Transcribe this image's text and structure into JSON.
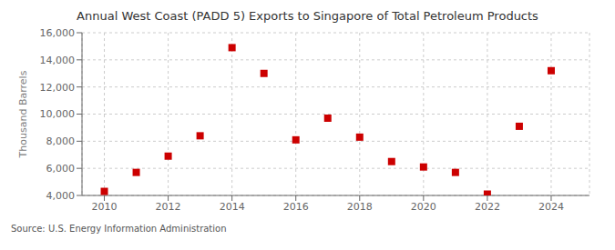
{
  "chart_data": {
    "type": "scatter",
    "title": "Annual West Coast (PADD 5) Exports to Singapore of Total Petroleum Products",
    "ylabel": "Thousand Barrels",
    "annotation": "Source: U.S. Energy Information Administration",
    "x": [
      2010,
      2011,
      2012,
      2013,
      2014,
      2015,
      2016,
      2017,
      2018,
      2019,
      2020,
      2021,
      2022,
      2023,
      2024
    ],
    "values": [
      4300,
      5700,
      6900,
      8400,
      14900,
      13000,
      8100,
      9700,
      8300,
      6500,
      6100,
      5700,
      4100,
      9100,
      13200
    ],
    "color": "#cc0000",
    "marker": "square",
    "xlim": [
      2009.3,
      2025.2
    ],
    "xticks": [
      2010,
      2012,
      2014,
      2016,
      2018,
      2020,
      2022,
      2024
    ],
    "ylim": [
      4000,
      16000
    ],
    "yticks": [
      {
        "value": 4000,
        "label": "4,000"
      },
      {
        "value": 6000,
        "label": "6,000"
      },
      {
        "value": 8000,
        "label": "8,000"
      },
      {
        "value": 10000,
        "label": "10,000"
      },
      {
        "value": 12000,
        "label": "12,000"
      },
      {
        "value": 14000,
        "label": "14,000"
      },
      {
        "value": 16000,
        "label": "16,000"
      }
    ],
    "grid": true
  }
}
